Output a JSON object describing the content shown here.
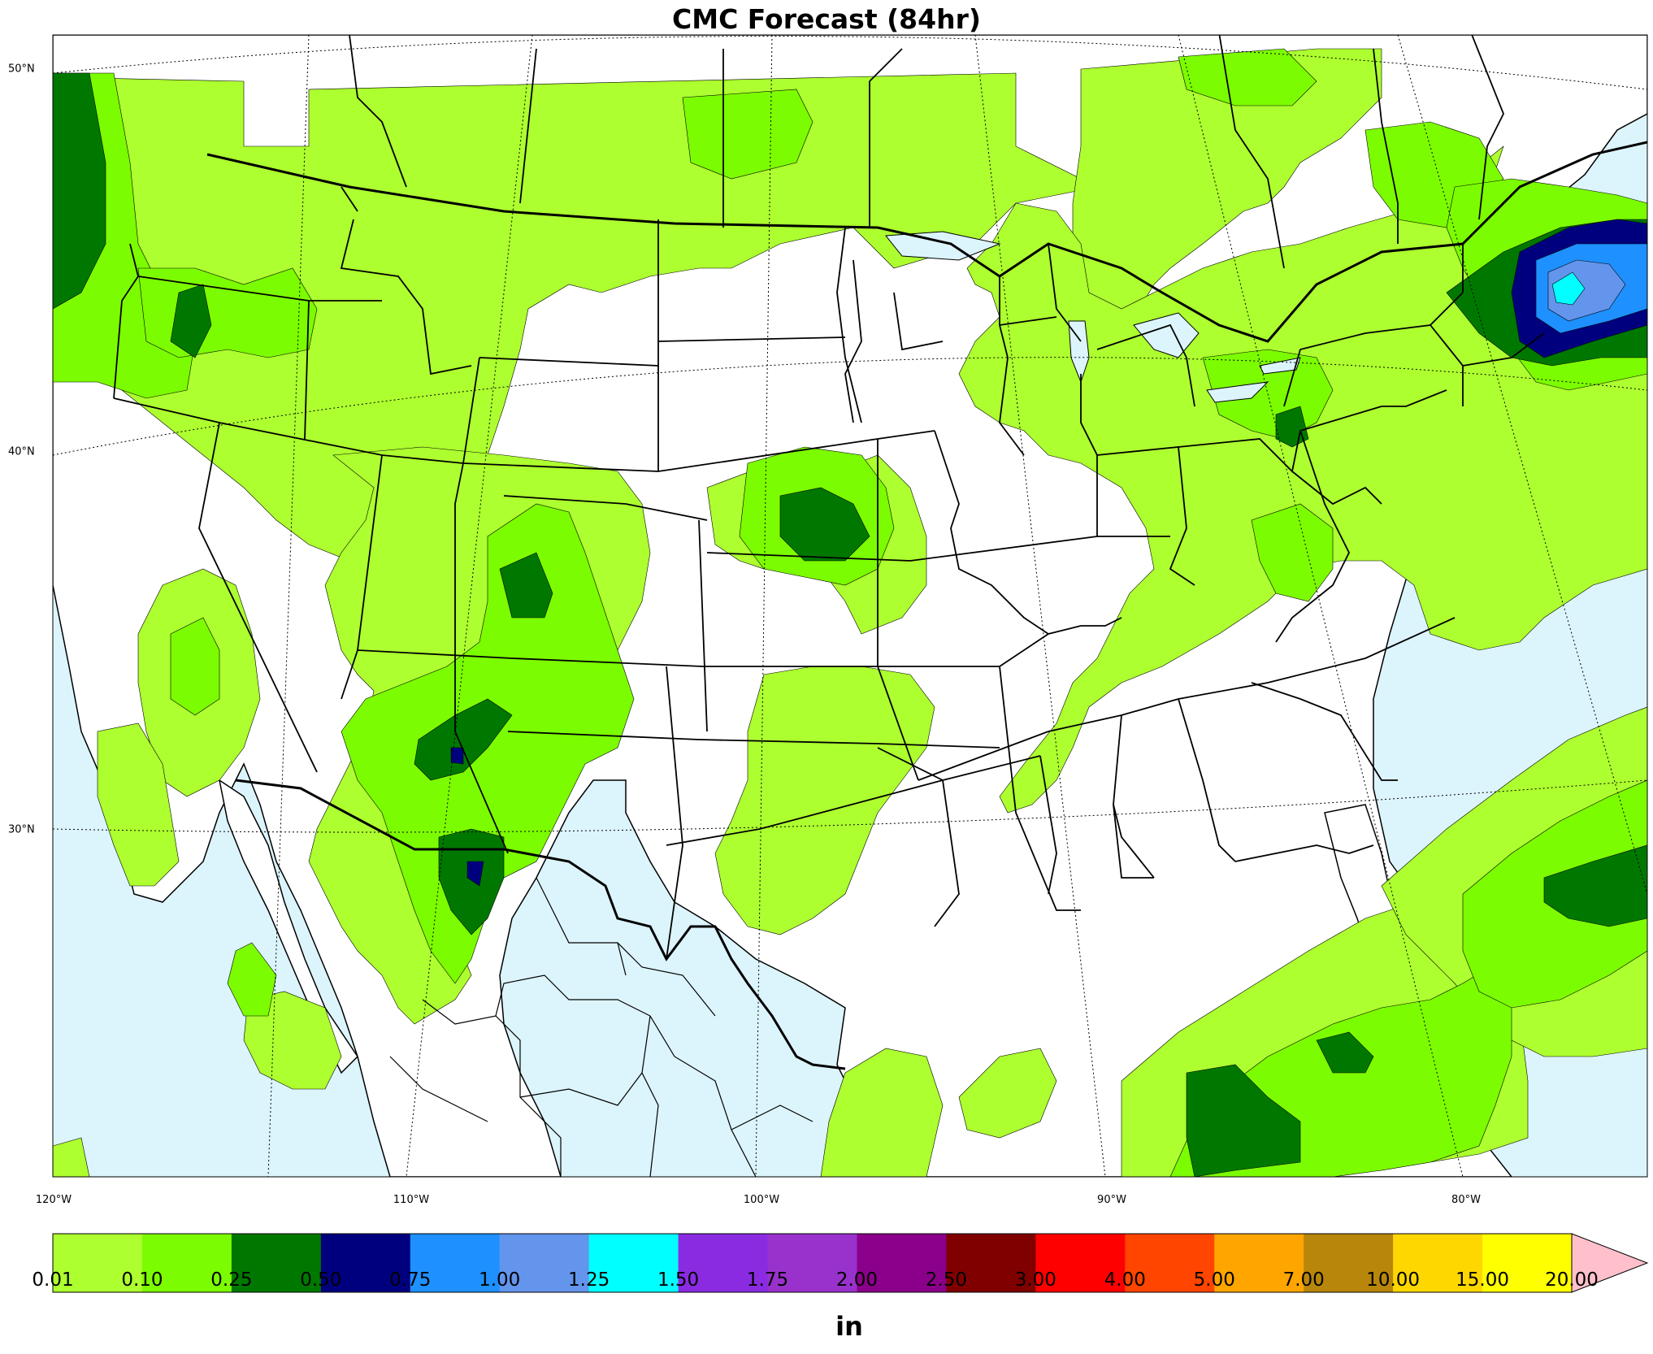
{
  "title": "CMC Forecast (84hr)",
  "units": "in",
  "longitude_labels": [
    "120°W",
    "110°W",
    "100°W",
    "90°W",
    "80°W"
  ],
  "latitude_labels": [
    "50°N",
    "40°N",
    "30°N"
  ],
  "colorbar": {
    "ticks": [
      "0.01",
      "0.10",
      "0.25",
      "0.50",
      "0.75",
      "1.00",
      "1.25",
      "1.50",
      "1.75",
      "2.00",
      "2.50",
      "3.00",
      "4.00",
      "5.00",
      "7.00",
      "10.00",
      "15.00",
      "20.00"
    ],
    "colors": [
      "#adff2f",
      "#7cfc00",
      "#007800",
      "#00007f",
      "#1e90ff",
      "#6495ed",
      "#00ffff",
      "#8a2be2",
      "#9932cc",
      "#8b008b",
      "#800000",
      "#ff0000",
      "#ff4500",
      "#ffa500",
      "#b8860b",
      "#ffd700",
      "#ffff00"
    ],
    "extend_color": "#ffc0cb"
  },
  "colors": {
    "ocean": "#dcf4fc",
    "land": "#ffffff"
  }
}
